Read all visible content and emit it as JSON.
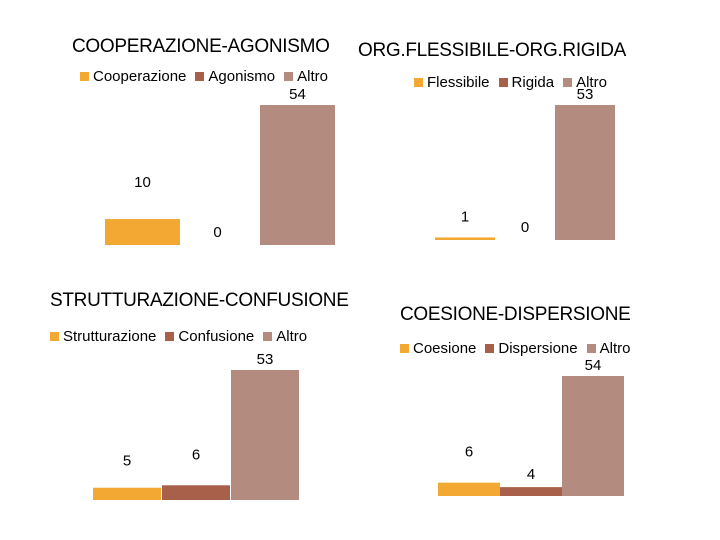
{
  "colors": {
    "series1": "#f2a833",
    "series2": "#a8604a",
    "series3": "#b38b7f"
  },
  "chart_data": [
    {
      "type": "bar",
      "title": "COOPERAZIONE-AGONISMO",
      "series": [
        {
          "name": "Cooperazione",
          "values": [
            10
          ]
        },
        {
          "name": "Agonismo",
          "values": [
            0
          ]
        },
        {
          "name": "Altro",
          "values": [
            54
          ]
        }
      ],
      "ylim": [
        0,
        54
      ],
      "legend": "top"
    },
    {
      "type": "bar",
      "title": "ORG.FLESSIBILE-ORG.RIGIDA",
      "series": [
        {
          "name": "Flessibile",
          "values": [
            1
          ]
        },
        {
          "name": "Rigida",
          "values": [
            0
          ]
        },
        {
          "name": "Altro",
          "values": [
            53
          ]
        }
      ],
      "ylim": [
        0,
        53
      ],
      "legend": "top"
    },
    {
      "type": "bar",
      "title": "STRUTTURAZIONE-CONFUSIONE",
      "series": [
        {
          "name": "Strutturazione",
          "values": [
            5
          ]
        },
        {
          "name": "Confusione",
          "values": [
            6
          ]
        },
        {
          "name": "Altro",
          "values": [
            53
          ]
        }
      ],
      "ylim": [
        0,
        53
      ],
      "legend": "top"
    },
    {
      "type": "bar",
      "title": "COESIONE-DISPERSIONE",
      "series": [
        {
          "name": "Coesione",
          "values": [
            6
          ]
        },
        {
          "name": "Dispersione",
          "values": [
            4
          ]
        },
        {
          "name": "Altro",
          "values": [
            54
          ]
        }
      ],
      "ylim": [
        0,
        54
      ],
      "legend": "top"
    }
  ]
}
